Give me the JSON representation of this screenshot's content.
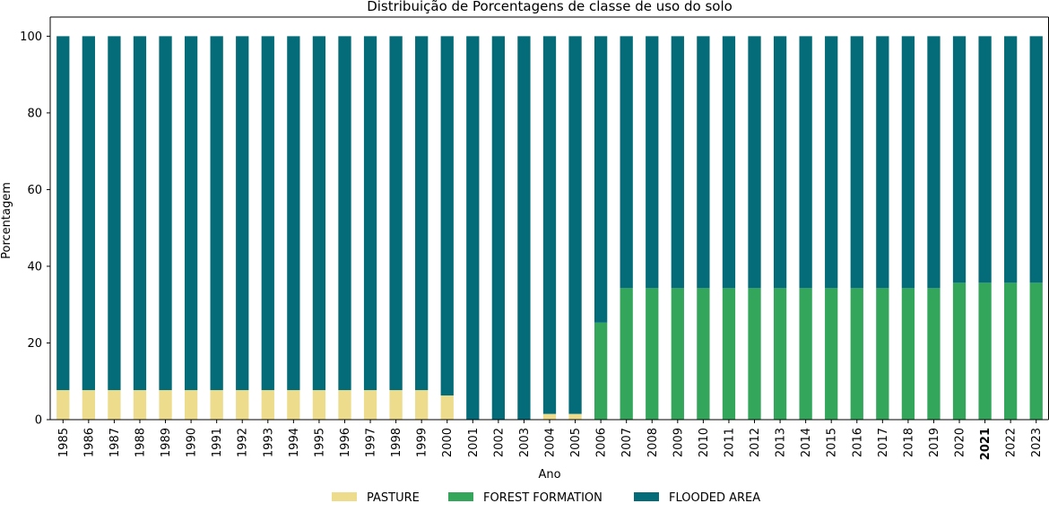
{
  "chart_data": {
    "type": "bar",
    "stacked": true,
    "title": "Distribuição de Porcentagens de classe de uso do solo",
    "xlabel": "Ano",
    "ylabel": "Porcentagem",
    "ylim": [
      0,
      105
    ],
    "yticks": [
      0,
      20,
      40,
      60,
      80,
      100
    ],
    "grid": false,
    "legend_placement": "bottom-center",
    "highlighted_category": "2021",
    "categories": [
      "1985",
      "1986",
      "1987",
      "1988",
      "1989",
      "1990",
      "1991",
      "1992",
      "1993",
      "1994",
      "1995",
      "1996",
      "1997",
      "1998",
      "1999",
      "2000",
      "2001",
      "2002",
      "2003",
      "2004",
      "2005",
      "2006",
      "2007",
      "2008",
      "2009",
      "2010",
      "2011",
      "2012",
      "2013",
      "2014",
      "2015",
      "2016",
      "2017",
      "2018",
      "2019",
      "2020",
      "2021",
      "2022",
      "2023"
    ],
    "series": [
      {
        "name": "PASTURE",
        "color": "#ecdc8c",
        "values": [
          7.7,
          7.7,
          7.7,
          7.7,
          7.7,
          7.7,
          7.7,
          7.7,
          7.7,
          7.7,
          7.7,
          7.7,
          7.7,
          7.7,
          7.7,
          6.3,
          0,
          0,
          0,
          1.5,
          1.5,
          0,
          0,
          0,
          0,
          0,
          0,
          0,
          0,
          0,
          0,
          0,
          0,
          0,
          0,
          0,
          0,
          0,
          0
        ]
      },
      {
        "name": "FOREST FORMATION",
        "color": "#34a65c",
        "values": [
          0,
          0,
          0,
          0,
          0,
          0,
          0,
          0,
          0,
          0,
          0,
          0,
          0,
          0,
          0,
          0,
          0,
          0,
          0,
          0,
          0,
          25.3,
          34.3,
          34.3,
          34.3,
          34.3,
          34.3,
          34.3,
          34.3,
          34.3,
          34.3,
          34.3,
          34.3,
          34.3,
          34.3,
          35.7,
          35.7,
          35.7,
          35.7
        ]
      },
      {
        "name": "FLOODED AREA",
        "color": "#046c78",
        "values": [
          92.3,
          92.3,
          92.3,
          92.3,
          92.3,
          92.3,
          92.3,
          92.3,
          92.3,
          92.3,
          92.3,
          92.3,
          92.3,
          92.3,
          92.3,
          93.7,
          100,
          100,
          100,
          98.5,
          98.5,
          74.7,
          65.7,
          65.7,
          65.7,
          65.7,
          65.7,
          65.7,
          65.7,
          65.7,
          65.7,
          65.7,
          65.7,
          65.7,
          65.7,
          64.3,
          64.3,
          64.3,
          64.3
        ]
      }
    ]
  }
}
